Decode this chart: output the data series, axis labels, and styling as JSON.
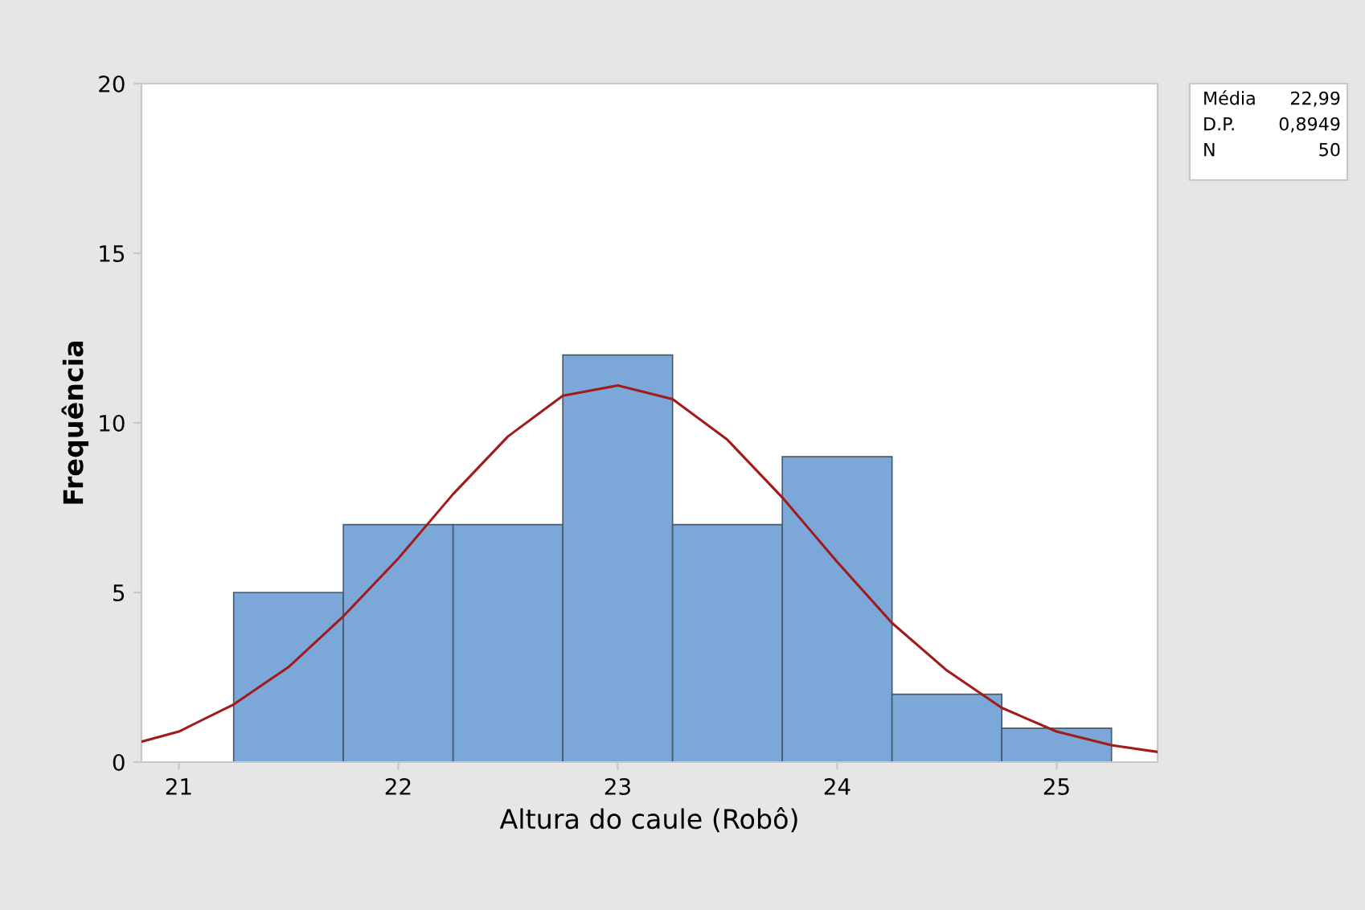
{
  "chart_data": {
    "type": "histogram",
    "xlabel": "Altura do caule (Robô)",
    "ylabel": "Frequência",
    "series": [
      {
        "bins": [
          21.25,
          21.75,
          22.25,
          22.75,
          23.25,
          23.75,
          24.25,
          24.75,
          25.25
        ],
        "values": [
          5,
          7,
          7,
          12,
          7,
          9,
          2,
          1
        ],
        "color": "#7ba7d9"
      },
      {
        "type": "line",
        "color": "#a31a1a",
        "x": [
          20.83,
          21.0,
          21.25,
          21.5,
          21.75,
          22.0,
          22.25,
          22.5,
          22.75,
          23.0,
          23.25,
          23.5,
          23.75,
          24.0,
          24.25,
          24.5,
          24.75,
          25.0,
          25.25,
          25.46
        ],
        "values": [
          0.6,
          0.9,
          1.7,
          2.8,
          4.3,
          6.0,
          7.9,
          9.6,
          10.8,
          11.1,
          10.7,
          9.5,
          7.8,
          5.9,
          4.1,
          2.7,
          1.6,
          0.9,
          0.5,
          0.3
        ]
      }
    ],
    "xlim": [
      20.83,
      25.46
    ],
    "xticks": [
      21,
      22,
      23,
      24,
      25
    ],
    "ylim": [
      0,
      20
    ],
    "yticks": [
      0,
      5,
      10,
      15,
      20
    ],
    "grid": false,
    "annotations": [
      "Média\t22,99",
      "D.P.\t0,8949",
      "N\t50"
    ]
  }
}
